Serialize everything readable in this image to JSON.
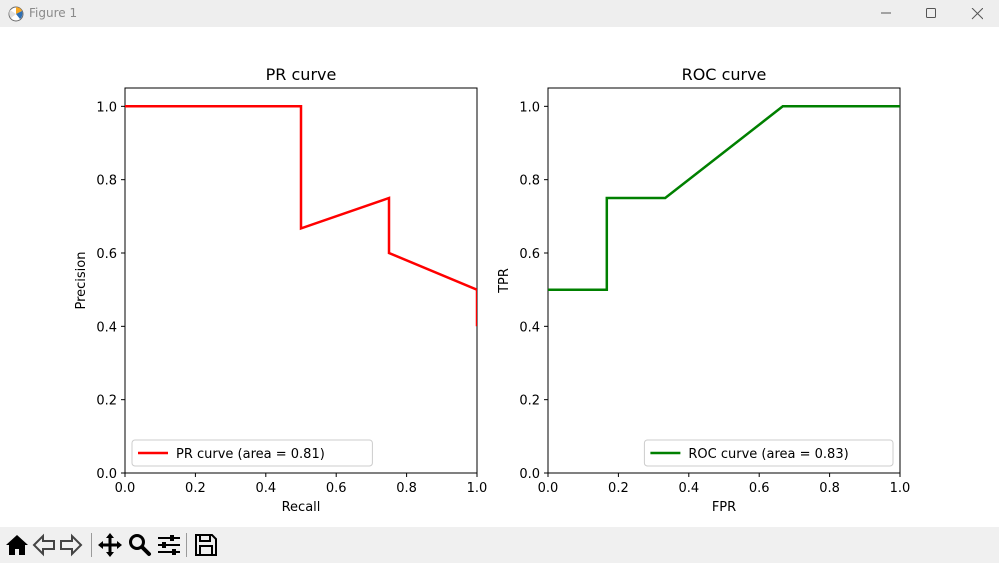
{
  "window": {
    "title": "Figure 1",
    "controls": [
      "minimize",
      "maximize",
      "close"
    ]
  },
  "toolbar": {
    "buttons": [
      {
        "name": "home",
        "icon": "home-icon"
      },
      {
        "name": "back",
        "icon": "back-arrow-icon"
      },
      {
        "name": "forward",
        "icon": "forward-arrow-icon"
      },
      {
        "name": "pan",
        "icon": "move-icon"
      },
      {
        "name": "zoom",
        "icon": "magnifier-icon"
      },
      {
        "name": "configure-subplots",
        "icon": "sliders-icon"
      },
      {
        "name": "save",
        "icon": "floppy-disk-icon"
      }
    ]
  },
  "chart_data": [
    {
      "type": "line",
      "title": "PR curve",
      "xlabel": "Recall",
      "ylabel": "Precision",
      "xlim": [
        0.0,
        1.0
      ],
      "ylim": [
        0.0,
        1.05
      ],
      "xticks": [
        "0.0",
        "0.2",
        "0.4",
        "0.6",
        "0.8",
        "1.0"
      ],
      "yticks": [
        "0.0",
        "0.2",
        "0.4",
        "0.6",
        "0.8",
        "1.0"
      ],
      "grid": false,
      "legend_position": "lower-left",
      "series": [
        {
          "name": "PR curve (area = 0.81)",
          "color": "#ff0000",
          "x": [
            0.0,
            0.5,
            0.5,
            0.75,
            0.75,
            1.0,
            1.0
          ],
          "y": [
            1.0,
            1.0,
            0.667,
            0.75,
            0.6,
            0.5,
            0.4
          ]
        }
      ]
    },
    {
      "type": "line",
      "title": "ROC curve",
      "xlabel": "FPR",
      "ylabel": "TPR",
      "xlim": [
        0.0,
        1.0
      ],
      "ylim": [
        0.0,
        1.05
      ],
      "xticks": [
        "0.0",
        "0.2",
        "0.4",
        "0.6",
        "0.8",
        "1.0"
      ],
      "yticks": [
        "0.0",
        "0.2",
        "0.4",
        "0.6",
        "0.8",
        "1.0"
      ],
      "grid": false,
      "legend_position": "lower-right",
      "series": [
        {
          "name": "ROC curve (area = 0.83)",
          "color": "#008000",
          "x": [
            0.0,
            0.167,
            0.167,
            0.333,
            0.667,
            1.0
          ],
          "y": [
            0.5,
            0.5,
            0.75,
            0.75,
            1.0,
            1.0
          ]
        }
      ]
    }
  ]
}
